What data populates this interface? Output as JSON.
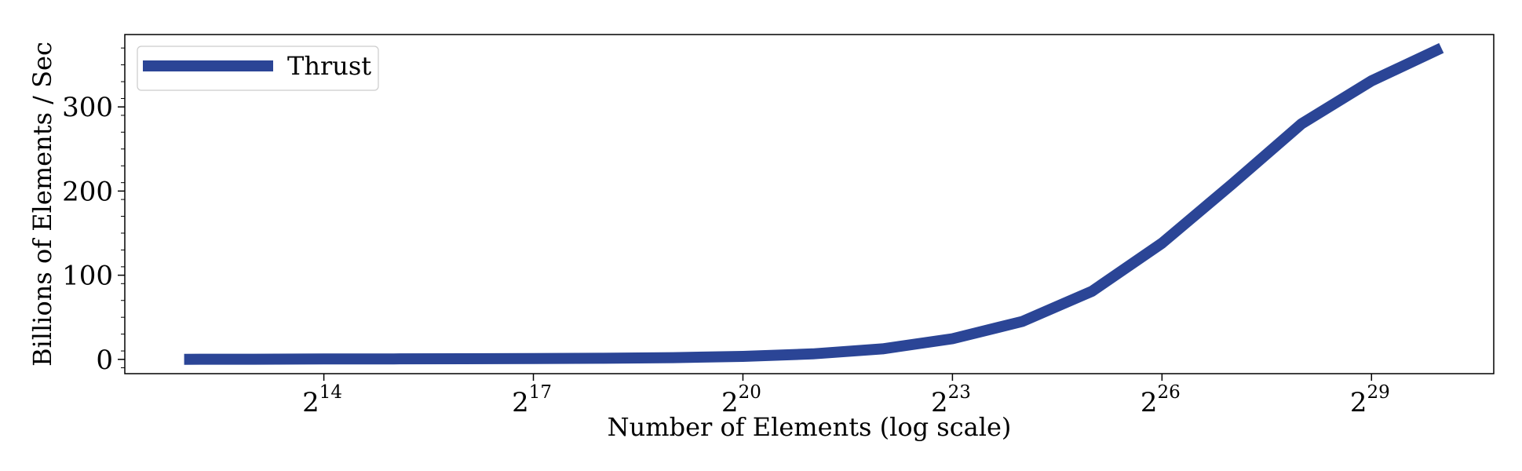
{
  "chart_data": {
    "type": "line",
    "title": "",
    "xlabel": "Number of Elements (log scale)",
    "ylabel": "Billions of Elements / Sec",
    "x_scale": "log2",
    "x_exponents": [
      12,
      13,
      14,
      15,
      16,
      17,
      18,
      19,
      20,
      21,
      22,
      23,
      24,
      25,
      26,
      27,
      28,
      29,
      30
    ],
    "xlim_exponent": [
      11.15,
      30.75
    ],
    "x_ticks": [
      {
        "base": "2",
        "exponent": "14",
        "value": 14
      },
      {
        "base": "2",
        "exponent": "17",
        "value": 17
      },
      {
        "base": "2",
        "exponent": "20",
        "value": 20
      },
      {
        "base": "2",
        "exponent": "23",
        "value": 23
      },
      {
        "base": "2",
        "exponent": "26",
        "value": 26
      },
      {
        "base": "2",
        "exponent": "29",
        "value": 29
      }
    ],
    "y_ticks": [
      {
        "label": "0",
        "value": 0
      },
      {
        "label": "100",
        "value": 100
      },
      {
        "label": "200",
        "value": 200
      },
      {
        "label": "300",
        "value": 300
      }
    ],
    "ylim": [
      -17,
      386
    ],
    "grid": false,
    "legend_position": "top-left",
    "series": [
      {
        "name": "Thrust",
        "color": "#2b4596",
        "values": [
          0.1,
          0.2,
          0.4,
          0.5,
          0.7,
          0.9,
          1.3,
          2.0,
          3.5,
          6.5,
          12.5,
          24.5,
          45,
          81,
          138,
          208,
          280,
          331,
          370
        ]
      }
    ]
  }
}
